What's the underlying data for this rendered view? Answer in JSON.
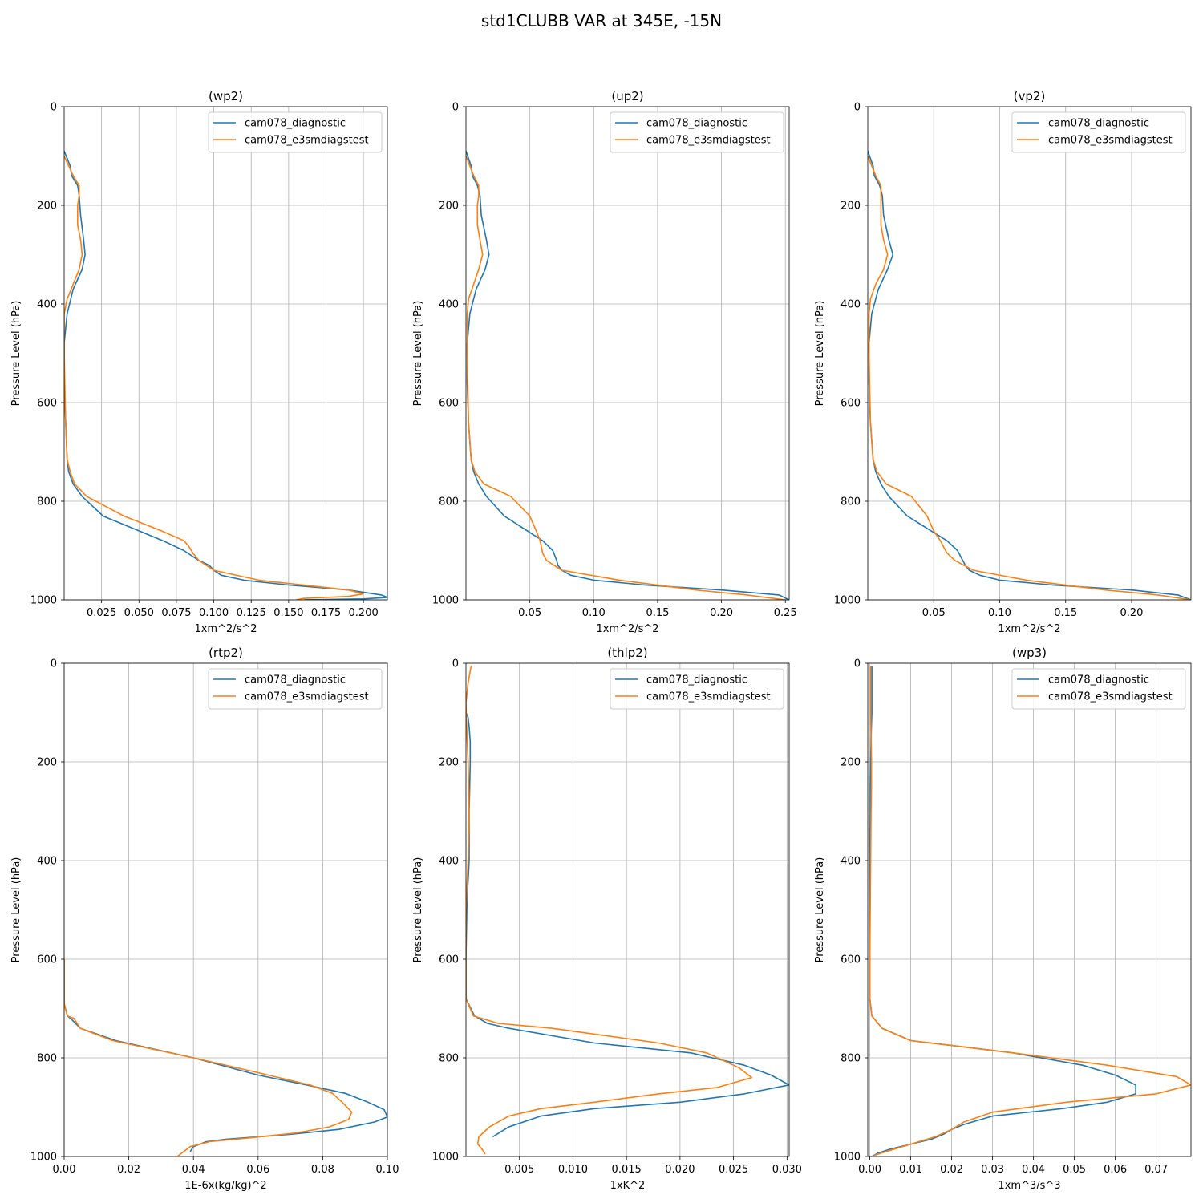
{
  "figure": {
    "title": "std1CLUBB VAR at 345E, -15N"
  },
  "colors": {
    "series_0": "#1f77b4",
    "series_1": "#ff7f0e",
    "grid": "#b0b0b0"
  },
  "chart_data": [
    {
      "type": "line",
      "title": "(wp2)",
      "xlabel": "1xm^2/s^2",
      "ylabel": "Pressure Level (hPa)",
      "xlim": [
        0.0,
        0.216
      ],
      "ylim": [
        1000,
        0
      ],
      "xticks": [
        0.025,
        0.05,
        0.075,
        0.1,
        0.125,
        0.15,
        0.175,
        0.2
      ],
      "xtick_labels": [
        "0.025",
        "0.050",
        "0.075",
        "0.100",
        "0.125",
        "0.150",
        "0.175",
        "0.200"
      ],
      "yticks": [
        0,
        200,
        400,
        600,
        800,
        1000
      ],
      "grid": true,
      "legend": "upper right",
      "series": [
        {
          "name": "cam078_diagnostic",
          "x": [
            0.0,
            0.004,
            0.005,
            0.009,
            0.01,
            0.011,
            0.013,
            0.014,
            0.012,
            0.006,
            0.002,
            0.0,
            0.0,
            0.001,
            0.002,
            0.003,
            0.006,
            0.012,
            0.026,
            0.05,
            0.066,
            0.08,
            0.09,
            0.097,
            0.1,
            0.105,
            0.12,
            0.15,
            0.19,
            0.212,
            0.216,
            0.2,
            0.16
          ],
          "y": [
            90,
            120,
            140,
            160,
            180,
            220,
            270,
            300,
            330,
            370,
            420,
            480,
            560,
            640,
            715,
            740,
            765,
            790,
            830,
            860,
            880,
            900,
            920,
            930,
            940,
            950,
            960,
            970,
            980,
            990,
            995,
            998,
            1000
          ]
        },
        {
          "name": "cam078_e3smdiagstest",
          "x": [
            0.0,
            0.003,
            0.006,
            0.01,
            0.01,
            0.009,
            0.009,
            0.011,
            0.012,
            0.01,
            0.006,
            0.002,
            0.0,
            0.0,
            0.001,
            0.002,
            0.004,
            0.007,
            0.015,
            0.04,
            0.065,
            0.08,
            0.083,
            0.086,
            0.09,
            0.1,
            0.13,
            0.16,
            0.19,
            0.2,
            0.19,
            0.16,
            0.155
          ],
          "y": [
            100,
            120,
            140,
            160,
            180,
            200,
            240,
            270,
            300,
            330,
            360,
            390,
            420,
            500,
            640,
            715,
            740,
            765,
            790,
            830,
            860,
            880,
            890,
            905,
            920,
            940,
            960,
            970,
            980,
            988,
            993,
            997,
            1000
          ]
        }
      ]
    },
    {
      "type": "line",
      "title": "(up2)",
      "xlabel": "1xm^2/s^2",
      "ylabel": "Pressure Level (hPa)",
      "xlim": [
        0.0,
        0.253
      ],
      "ylim": [
        1000,
        0
      ],
      "xticks": [
        0.05,
        0.1,
        0.15,
        0.2,
        0.25
      ],
      "xtick_labels": [
        "0.05",
        "0.10",
        "0.15",
        "0.20",
        "0.25"
      ],
      "yticks": [
        0,
        200,
        400,
        600,
        800,
        1000
      ],
      "grid": true,
      "legend": "upper right",
      "series": [
        {
          "name": "cam078_diagnostic",
          "x": [
            0.0,
            0.004,
            0.005,
            0.009,
            0.011,
            0.012,
            0.016,
            0.018,
            0.015,
            0.008,
            0.003,
            0.001,
            0.001,
            0.002,
            0.004,
            0.006,
            0.01,
            0.016,
            0.03,
            0.048,
            0.06,
            0.068,
            0.071,
            0.072,
            0.075,
            0.082,
            0.1,
            0.14,
            0.2,
            0.245,
            0.253
          ],
          "y": [
            90,
            120,
            140,
            160,
            180,
            220,
            270,
            300,
            330,
            370,
            420,
            480,
            560,
            640,
            715,
            740,
            765,
            790,
            830,
            860,
            880,
            900,
            920,
            930,
            940,
            950,
            960,
            970,
            980,
            990,
            1000
          ]
        },
        {
          "name": "cam078_e3smdiagstest",
          "x": [
            0.0,
            0.003,
            0.006,
            0.01,
            0.01,
            0.009,
            0.009,
            0.011,
            0.013,
            0.01,
            0.006,
            0.002,
            0.001,
            0.001,
            0.002,
            0.004,
            0.007,
            0.014,
            0.035,
            0.05,
            0.055,
            0.058,
            0.06,
            0.063,
            0.075,
            0.12,
            0.18,
            0.22,
            0.25
          ],
          "y": [
            100,
            120,
            140,
            160,
            180,
            200,
            240,
            270,
            300,
            330,
            360,
            390,
            420,
            500,
            640,
            715,
            740,
            765,
            790,
            830,
            860,
            880,
            905,
            920,
            940,
            960,
            980,
            990,
            1000
          ]
        }
      ]
    },
    {
      "type": "line",
      "title": "(vp2)",
      "xlabel": "1xm^2/s^2",
      "ylabel": "Pressure Level (hPa)",
      "xlim": [
        0.0,
        0.245
      ],
      "ylim": [
        1000,
        0
      ],
      "xticks": [
        0.05,
        0.1,
        0.15,
        0.2
      ],
      "xtick_labels": [
        "0.05",
        "0.10",
        "0.15",
        "0.20"
      ],
      "yticks": [
        0,
        200,
        400,
        600,
        800,
        1000
      ],
      "grid": true,
      "legend": "upper right",
      "series": [
        {
          "name": "cam078_diagnostic",
          "x": [
            0.0,
            0.004,
            0.005,
            0.009,
            0.011,
            0.012,
            0.016,
            0.019,
            0.015,
            0.008,
            0.003,
            0.001,
            0.001,
            0.002,
            0.004,
            0.006,
            0.01,
            0.016,
            0.03,
            0.048,
            0.06,
            0.068,
            0.072,
            0.074,
            0.077,
            0.085,
            0.1,
            0.14,
            0.2,
            0.235,
            0.245
          ],
          "y": [
            90,
            120,
            140,
            160,
            180,
            220,
            270,
            300,
            330,
            370,
            420,
            480,
            560,
            640,
            715,
            740,
            765,
            790,
            830,
            860,
            880,
            900,
            920,
            930,
            940,
            950,
            960,
            970,
            980,
            990,
            1000
          ]
        },
        {
          "name": "cam078_e3smdiagstest",
          "x": [
            0.0,
            0.003,
            0.006,
            0.01,
            0.01,
            0.01,
            0.01,
            0.012,
            0.015,
            0.012,
            0.006,
            0.002,
            0.001,
            0.001,
            0.002,
            0.004,
            0.007,
            0.014,
            0.033,
            0.045,
            0.05,
            0.055,
            0.06,
            0.066,
            0.08,
            0.12,
            0.18,
            0.22,
            0.245
          ],
          "y": [
            100,
            120,
            140,
            160,
            180,
            200,
            240,
            270,
            300,
            330,
            360,
            390,
            420,
            500,
            640,
            715,
            740,
            765,
            790,
            830,
            860,
            880,
            905,
            920,
            940,
            960,
            980,
            990,
            1000
          ]
        }
      ]
    },
    {
      "type": "line",
      "title": "(rtp2)",
      "xlabel": "1E-6x(kg/kg)^2",
      "ylabel": "Pressure Level (hPa)",
      "xlim": [
        0.0,
        0.1
      ],
      "ylim": [
        1000,
        0
      ],
      "xticks": [
        0.0,
        0.02,
        0.04,
        0.06,
        0.08,
        0.1
      ],
      "xtick_labels": [
        "0.00",
        "0.02",
        "0.04",
        "0.06",
        "0.08",
        "0.10"
      ],
      "yticks": [
        0,
        200,
        400,
        600,
        800,
        1000
      ],
      "grid": true,
      "legend": "upper right",
      "series": [
        {
          "name": "cam078_diagnostic",
          "x": [
            0.0,
            0.0,
            0.001,
            0.002,
            0.005,
            0.016,
            0.04,
            0.06,
            0.075,
            0.087,
            0.094,
            0.099,
            0.1,
            0.096,
            0.085,
            0.07,
            0.06,
            0.05,
            0.044,
            0.04,
            0.039
          ],
          "y": [
            600,
            690,
            715,
            720,
            740,
            765,
            800,
            835,
            855,
            872,
            890,
            905,
            920,
            930,
            945,
            955,
            960,
            965,
            970,
            980,
            990
          ]
        },
        {
          "name": "cam078_e3smdiagstest",
          "x": [
            0.0,
            0.0,
            0.001,
            0.003,
            0.005,
            0.015,
            0.04,
            0.06,
            0.076,
            0.083,
            0.086,
            0.089,
            0.088,
            0.082,
            0.072,
            0.058,
            0.045,
            0.039,
            0.037,
            0.035
          ],
          "y": [
            600,
            690,
            715,
            720,
            740,
            765,
            800,
            830,
            855,
            872,
            890,
            910,
            925,
            940,
            952,
            962,
            970,
            980,
            990,
            1000
          ]
        }
      ]
    },
    {
      "type": "line",
      "title": "(thlp2)",
      "xlabel": "1xK^2",
      "ylabel": "Pressure Level (hPa)",
      "xlim": [
        0.0,
        0.0302
      ],
      "ylim": [
        1000,
        0
      ],
      "xticks": [
        0.005,
        0.01,
        0.015,
        0.02,
        0.025,
        0.03
      ],
      "xtick_labels": [
        "0.005",
        "0.010",
        "0.015",
        "0.020",
        "0.025",
        "0.030"
      ],
      "yticks": [
        0,
        200,
        400,
        600,
        800,
        1000
      ],
      "grid": true,
      "legend": "upper right",
      "series": [
        {
          "name": "cam078_diagnostic",
          "x": [
            0.0,
            0.0002,
            0.0003,
            0.0004,
            0.0004,
            0.0003,
            0.0003,
            0.0002,
            0.0001,
            0.0,
            0.0,
            0.0008,
            0.002,
            0.004,
            0.012,
            0.021,
            0.026,
            0.0285,
            0.0302,
            0.026,
            0.02,
            0.012,
            0.007,
            0.004,
            0.0025
          ],
          "y": [
            100,
            110,
            130,
            160,
            200,
            300,
            400,
            440,
            480,
            600,
            680,
            715,
            730,
            740,
            770,
            790,
            815,
            835,
            855,
            873,
            890,
            903,
            918,
            940,
            960
          ]
        },
        {
          "name": "cam078_e3smdiagstest",
          "x": [
            0.0005,
            0.0004,
            0.0002,
            0.0,
            0.0001,
            0.0002,
            0.0003,
            0.0002,
            0.0001,
            0.0,
            0.0,
            0.0007,
            0.003,
            0.008,
            0.018,
            0.0225,
            0.0255,
            0.0267,
            0.0235,
            0.018,
            0.012,
            0.007,
            0.004,
            0.0022,
            0.0012,
            0.0011,
            0.0015,
            0.0018
          ],
          "y": [
            5,
            15,
            40,
            80,
            150,
            200,
            300,
            400,
            450,
            500,
            680,
            715,
            730,
            740,
            770,
            790,
            820,
            840,
            860,
            873,
            890,
            903,
            918,
            940,
            960,
            975,
            985,
            995
          ]
        }
      ]
    },
    {
      "type": "line",
      "title": "(wp3)",
      "xlabel": "1xm^3/s^3",
      "ylabel": "Pressure Level (hPa)",
      "xlim": [
        -0.0005,
        0.0785
      ],
      "ylim": [
        1000,
        0
      ],
      "xticks": [
        0.0,
        0.01,
        0.02,
        0.03,
        0.04,
        0.05,
        0.06,
        0.07
      ],
      "xtick_labels": [
        "0.00",
        "0.01",
        "0.02",
        "0.03",
        "0.04",
        "0.05",
        "0.06",
        "0.07"
      ],
      "yticks": [
        0,
        200,
        400,
        600,
        800,
        1000
      ],
      "grid": true,
      "legend": "upper right",
      "series": [
        {
          "name": "cam078_diagnostic",
          "x": [
            0.0005,
            0.0005,
            0.0003,
            0.0002,
            0.0001,
            0.0001,
            0.0,
            0.0,
            0.0,
            0.0005,
            0.003,
            0.01,
            0.02,
            0.035,
            0.052,
            0.06,
            0.065,
            0.065,
            0.058,
            0.047,
            0.03,
            0.023,
            0.02,
            0.018,
            0.015,
            0.01,
            0.005,
            0.002,
            0.0005
          ],
          "y": [
            5,
            100,
            150,
            200,
            250,
            300,
            400,
            600,
            680,
            715,
            740,
            765,
            775,
            790,
            815,
            835,
            855,
            873,
            890,
            903,
            918,
            935,
            945,
            955,
            965,
            975,
            985,
            993,
            1000
          ]
        },
        {
          "name": "cam078_e3smdiagstest",
          "x": [
            0.0002,
            0.0002,
            0.0003,
            0.0004,
            0.0004,
            0.0003,
            0.0002,
            0.0,
            0.0,
            0.0005,
            0.003,
            0.01,
            0.02,
            0.035,
            0.058,
            0.075,
            0.0785,
            0.07,
            0.048,
            0.03,
            0.023,
            0.02,
            0.016,
            0.01,
            0.004,
            0.001
          ],
          "y": [
            5,
            100,
            150,
            200,
            250,
            300,
            400,
            600,
            680,
            715,
            740,
            765,
            775,
            790,
            815,
            838,
            855,
            873,
            890,
            910,
            930,
            945,
            960,
            975,
            990,
            998
          ]
        }
      ]
    }
  ]
}
